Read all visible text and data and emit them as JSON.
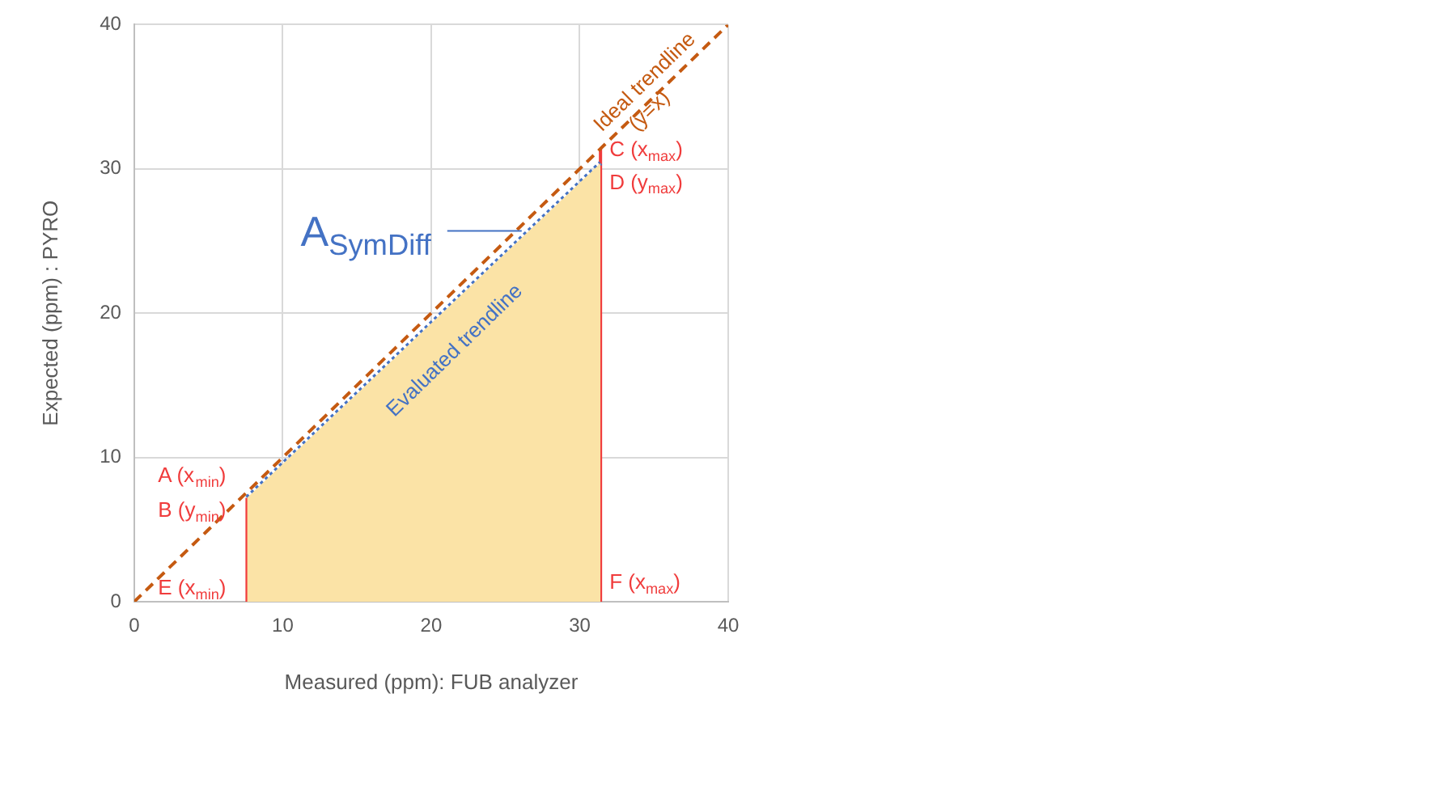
{
  "chart_data": {
    "type": "line",
    "xlabel": "Measured (ppm): FUB analyzer",
    "ylabel": "Expected (ppm) : PYRO",
    "xlim": [
      0,
      40
    ],
    "ylim": [
      0,
      40
    ],
    "xticks": [
      0,
      10,
      20,
      30,
      40
    ],
    "yticks": [
      0,
      10,
      20,
      30,
      40
    ],
    "grid": true,
    "legend": false,
    "marker": "none",
    "series": [
      {
        "type": "area",
        "color": "#fbe3a6",
        "x": [
          7.6,
          31.4
        ],
        "values": [
          7.2,
          30.4
        ]
      },
      {
        "type": "line",
        "color": "#c55a11",
        "line_style": "dashed",
        "x": [
          0,
          40
        ],
        "values": [
          0,
          40
        ]
      },
      {
        "type": "line",
        "color": "#4472c4",
        "line_style": "dotted",
        "x": [
          7.6,
          31.4
        ],
        "values": [
          7.2,
          30.4
        ]
      },
      {
        "type": "line",
        "color": "#f03c3c",
        "line_style": "solid",
        "x": [
          7.6,
          7.6
        ],
        "values": [
          0,
          7.2
        ]
      },
      {
        "type": "line",
        "color": "#f03c3c",
        "line_style": "solid",
        "x": [
          31.4,
          31.4
        ],
        "values": [
          0,
          31.4
        ]
      }
    ],
    "annotations": [
      "Ideal trendline",
      "(y=x)",
      "C (x$_{max}$)",
      "D (y$_{max}$)",
      "A$_{SymDiff}$",
      "Evaluated trendline",
      "A (x$_{min}$)",
      "B (y$_{min}$)",
      "E (x$_{min}$)",
      "F (x$_{max}$)"
    ]
  }
}
